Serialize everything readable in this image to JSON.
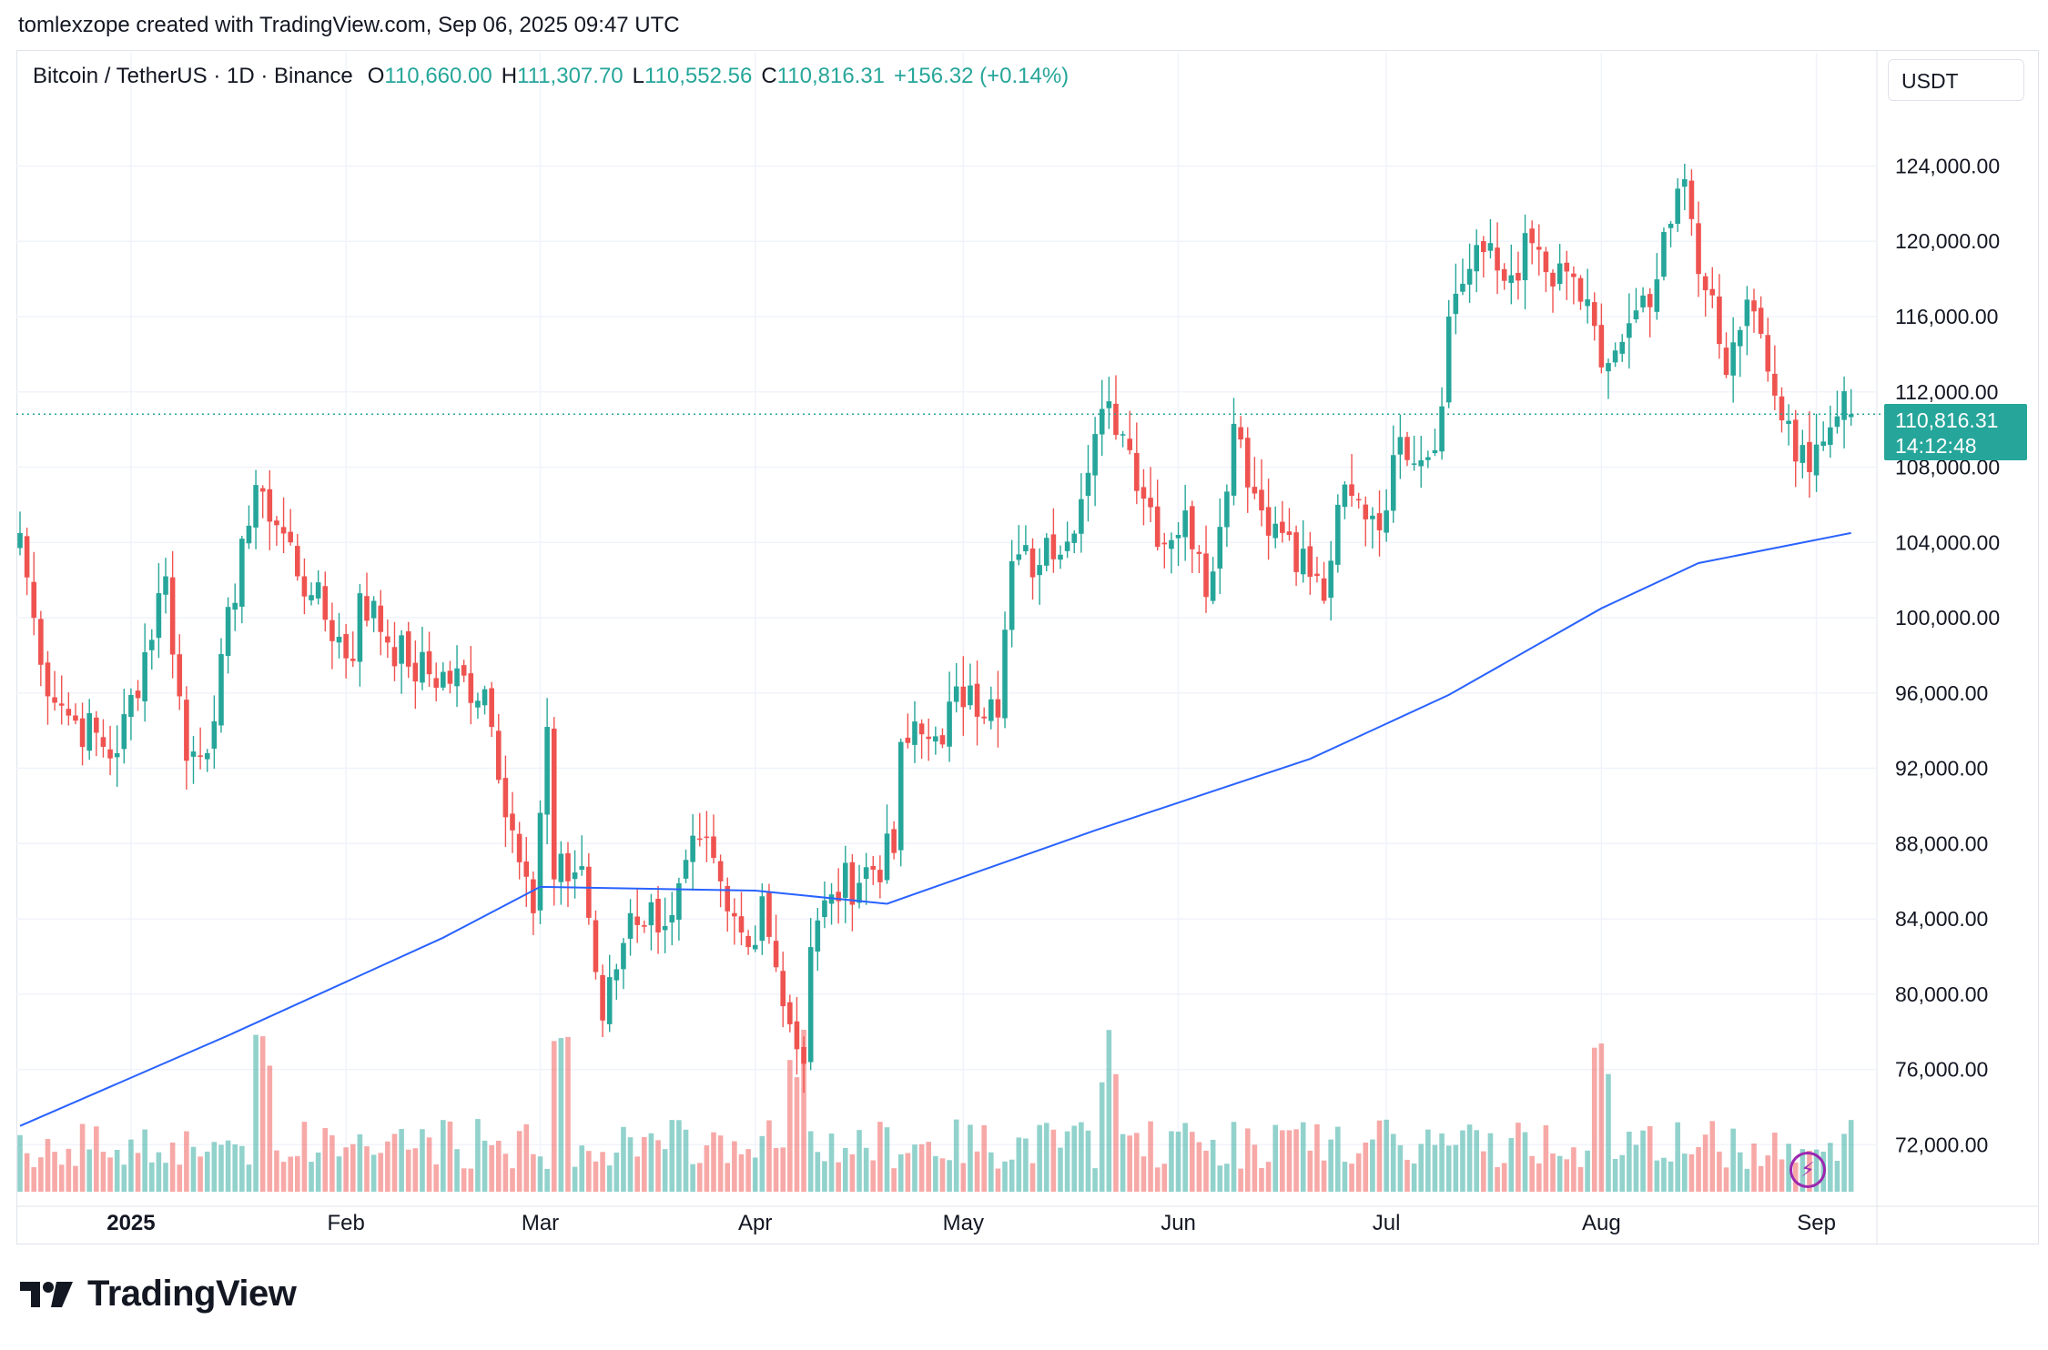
{
  "header": {
    "text": "tomlexzope created with TradingView.com, Sep 06, 2025 09:47 UTC"
  },
  "legend": {
    "symbol": "Bitcoin / TetherUS · 1D · Binance",
    "o_label": "O",
    "o_value": "110,660.00",
    "h_label": "H",
    "h_value": "111,307.70",
    "l_label": "L",
    "l_value": "110,552.56",
    "c_label": "C",
    "c_value": "110,816.31",
    "change": "+156.32 (+0.14%)"
  },
  "currency_button": {
    "label": "USDT"
  },
  "last_price": {
    "price": "110,816.31",
    "countdown": "14:12:48"
  },
  "footer": {
    "brand": "TradingView"
  },
  "colors": {
    "up": "#26a69a",
    "down": "#ef5350",
    "ma": "#2962ff",
    "grid": "#f0f3fa",
    "text": "#131722",
    "alert": "#9c27b0"
  },
  "icons": {
    "alert": "lightning-icon",
    "logo": "tradingview-logo"
  },
  "chart_data": {
    "type": "candlestick",
    "title": "Bitcoin / TetherUS · 1D · Binance",
    "x_axis": {
      "tick_labels": [
        "2025",
        "Feb",
        "Mar",
        "Apr",
        "May",
        "Jun",
        "Jul",
        "Aug",
        "Sep"
      ]
    },
    "y_axis": {
      "tick_labels": [
        "124,000.00",
        "120,000.00",
        "116,000.00",
        "112,000.00",
        "108,000.00",
        "104,000.00",
        "100,000.00",
        "96,000.00",
        "92,000.00",
        "88,000.00",
        "84,000.00",
        "80,000.00",
        "76,000.00",
        "72,000.00"
      ],
      "ylim": [
        69600,
        127600
      ]
    },
    "anchors": [
      {
        "date": "2024-12-16",
        "close": 104500
      },
      {
        "date": "2024-12-19",
        "close": 97500
      },
      {
        "date": "2024-12-23",
        "close": 94800
      },
      {
        "date": "2024-12-30",
        "close": 92800
      },
      {
        "date": "2025-01-06",
        "close": 102200
      },
      {
        "date": "2025-01-09",
        "close": 92400
      },
      {
        "date": "2025-01-13",
        "close": 94500
      },
      {
        "date": "2025-01-17",
        "close": 104200
      },
      {
        "date": "2025-01-20",
        "close": 106700
      },
      {
        "date": "2025-01-27",
        "close": 101200
      },
      {
        "date": "2025-02-02",
        "close": 97700
      },
      {
        "date": "2025-02-03",
        "close": 101300
      },
      {
        "date": "2025-02-10",
        "close": 97400
      },
      {
        "date": "2025-02-21",
        "close": 96200
      },
      {
        "date": "2025-02-25",
        "close": 88700
      },
      {
        "date": "2025-02-28",
        "close": 84300
      },
      {
        "date": "2025-03-02",
        "close": 94200
      },
      {
        "date": "2025-03-03",
        "close": 86100
      },
      {
        "date": "2025-03-07",
        "close": 86800
      },
      {
        "date": "2025-03-10",
        "close": 78600
      },
      {
        "date": "2025-03-14",
        "close": 84300
      },
      {
        "date": "2025-03-20",
        "close": 84200
      },
      {
        "date": "2025-03-24",
        "close": 88200
      },
      {
        "date": "2025-03-28",
        "close": 84400
      },
      {
        "date": "2025-03-31",
        "close": 82500
      },
      {
        "date": "2025-04-02",
        "close": 85200
      },
      {
        "date": "2025-04-06",
        "close": 78400
      },
      {
        "date": "2025-04-08",
        "close": 76300
      },
      {
        "date": "2025-04-09",
        "close": 82500
      },
      {
        "date": "2025-04-12",
        "close": 85300
      },
      {
        "date": "2025-04-21",
        "close": 87500
      },
      {
        "date": "2025-04-22",
        "close": 93400
      },
      {
        "date": "2025-04-27",
        "close": 93700
      },
      {
        "date": "2025-05-02",
        "close": 96400
      },
      {
        "date": "2025-05-06",
        "close": 94700
      },
      {
        "date": "2025-05-08",
        "close": 103000
      },
      {
        "date": "2025-05-12",
        "close": 102800
      },
      {
        "date": "2025-05-18",
        "close": 106300
      },
      {
        "date": "2025-05-22",
        "close": 111500
      },
      {
        "date": "2025-05-25",
        "close": 108900
      },
      {
        "date": "2025-05-30",
        "close": 103900
      },
      {
        "date": "2025-06-02",
        "close": 105700
      },
      {
        "date": "2025-06-05",
        "close": 101100
      },
      {
        "date": "2025-06-09",
        "close": 110300
      },
      {
        "date": "2025-06-13",
        "close": 105700
      },
      {
        "date": "2025-06-17",
        "close": 104400
      },
      {
        "date": "2025-06-22",
        "close": 100900
      },
      {
        "date": "2025-06-24",
        "close": 106000
      },
      {
        "date": "2025-07-01",
        "close": 105700
      },
      {
        "date": "2025-07-03",
        "close": 109600
      },
      {
        "date": "2025-07-08",
        "close": 108900
      },
      {
        "date": "2025-07-10",
        "close": 116000
      },
      {
        "date": "2025-07-14",
        "close": 119800
      },
      {
        "date": "2025-07-18",
        "close": 117900
      },
      {
        "date": "2025-07-22",
        "close": 119900
      },
      {
        "date": "2025-07-25",
        "close": 117600
      },
      {
        "date": "2025-07-28",
        "close": 118100
      },
      {
        "date": "2025-08-01",
        "close": 113300
      },
      {
        "date": "2025-08-03",
        "close": 114200
      },
      {
        "date": "2025-08-08",
        "close": 116500
      },
      {
        "date": "2025-08-13",
        "close": 123300
      },
      {
        "date": "2025-08-16",
        "close": 117400
      },
      {
        "date": "2025-08-19",
        "close": 112900
      },
      {
        "date": "2025-08-22",
        "close": 116900
      },
      {
        "date": "2025-08-26",
        "close": 111800
      },
      {
        "date": "2025-08-29",
        "close": 108300
      },
      {
        "date": "2025-09-01",
        "close": 109200
      },
      {
        "date": "2025-09-04",
        "close": 110700
      },
      {
        "date": "2025-09-06",
        "close": 110816.31
      }
    ],
    "moving_average": {
      "name": "MA",
      "points": [
        {
          "date": "2024-12-16",
          "value": 73000
        },
        {
          "date": "2025-01-15",
          "value": 77800
        },
        {
          "date": "2025-02-15",
          "value": 83000
        },
        {
          "date": "2025-03-01",
          "value": 85700
        },
        {
          "date": "2025-04-01",
          "value": 85500
        },
        {
          "date": "2025-04-20",
          "value": 84800
        },
        {
          "date": "2025-05-20",
          "value": 88700
        },
        {
          "date": "2025-06-20",
          "value": 92500
        },
        {
          "date": "2025-07-10",
          "value": 95900
        },
        {
          "date": "2025-08-01",
          "value": 100500
        },
        {
          "date": "2025-08-15",
          "value": 102900
        },
        {
          "date": "2025-09-06",
          "value": 104500
        }
      ]
    },
    "volume": {
      "peak_dates": [
        "2025-01-20",
        "2025-03-04",
        "2025-04-07",
        "2025-05-22",
        "2025-08-01"
      ]
    }
  }
}
